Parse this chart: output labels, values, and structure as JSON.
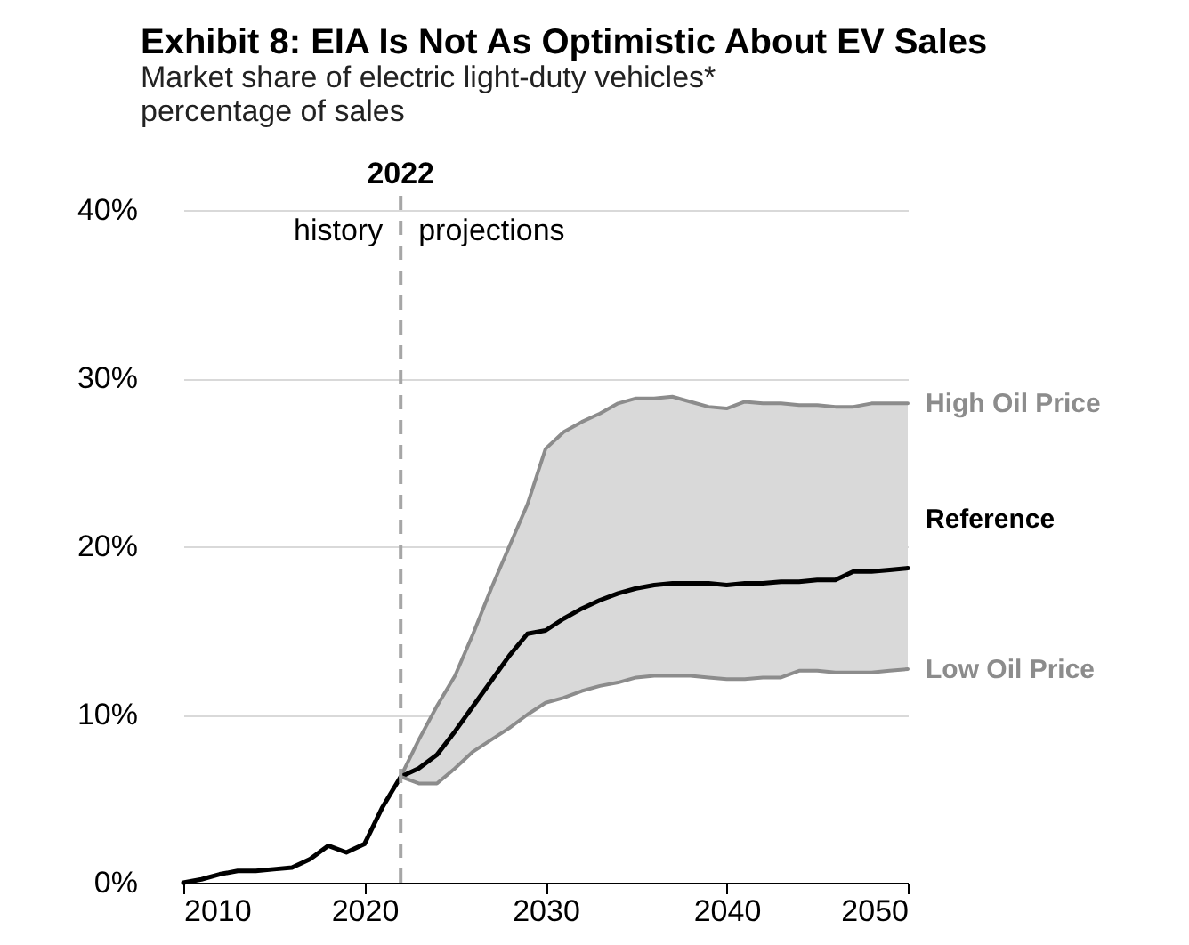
{
  "chart_data": {
    "type": "line",
    "title": "Exhibit 8: EIA Is Not As Optimistic About EV Sales",
    "subtitle": "Market share of electric light-duty vehicles*",
    "ylabel": "percentage of sales",
    "xlim": [
      2010,
      2050
    ],
    "xticks": [
      2010,
      2020,
      2030,
      2040,
      2050
    ],
    "ylim": [
      0,
      40
    ],
    "yticks": [
      {
        "value": 0,
        "label": "0%"
      },
      {
        "value": 10,
        "label": "10%"
      },
      {
        "value": 20,
        "label": "20%"
      },
      {
        "value": 30,
        "label": "30%"
      },
      {
        "value": 40,
        "label": "40%"
      }
    ],
    "grid": "y",
    "legend": false,
    "ref_lines": [
      {
        "axis": "x",
        "value": 2022,
        "label": "2022",
        "color": "#a6a6a6",
        "line_style": "dashed"
      }
    ],
    "annotations": [
      "history",
      "projections"
    ],
    "x": [
      2010,
      2011,
      2012,
      2013,
      2014,
      2015,
      2016,
      2017,
      2018,
      2019,
      2020,
      2021,
      2022,
      2023,
      2024,
      2025,
      2026,
      2027,
      2028,
      2029,
      2030,
      2031,
      2032,
      2033,
      2034,
      2035,
      2036,
      2037,
      2038,
      2039,
      2040,
      2041,
      2042,
      2043,
      2044,
      2045,
      2046,
      2047,
      2048,
      2049,
      2050
    ],
    "series": [
      {
        "name": "High Oil Price",
        "color": "#8c8c8c",
        "x": [
          2022,
          2023,
          2024,
          2025,
          2026,
          2027,
          2028,
          2029,
          2030,
          2031,
          2032,
          2033,
          2034,
          2035,
          2036,
          2037,
          2038,
          2039,
          2040,
          2041,
          2042,
          2043,
          2044,
          2045,
          2046,
          2047,
          2048,
          2049,
          2050
        ],
        "values": [
          6.3,
          8.5,
          10.5,
          12.3,
          14.8,
          17.5,
          20.0,
          22.5,
          25.8,
          26.8,
          27.4,
          27.9,
          28.5,
          28.8,
          28.8,
          28.9,
          28.6,
          28.3,
          28.2,
          28.6,
          28.5,
          28.5,
          28.4,
          28.4,
          28.3,
          28.3,
          28.5,
          28.5,
          28.5
        ]
      },
      {
        "name": "Reference",
        "color": "#000000",
        "values": [
          0,
          0.2,
          0.5,
          0.7,
          0.7,
          0.8,
          0.9,
          1.4,
          2.2,
          1.8,
          2.3,
          4.5,
          6.3,
          6.8,
          7.6,
          9.0,
          10.5,
          12.0,
          13.5,
          14.8,
          15.0,
          15.7,
          16.3,
          16.8,
          17.2,
          17.5,
          17.7,
          17.8,
          17.8,
          17.8,
          17.7,
          17.8,
          17.8,
          17.9,
          17.9,
          18.0,
          18.0,
          18.5,
          18.5,
          18.6,
          18.7
        ],
        "lower": [
          null,
          null,
          null,
          null,
          null,
          null,
          null,
          null,
          null,
          null,
          null,
          null,
          6.3,
          5.9,
          5.9,
          6.8,
          7.8,
          8.5,
          9.2,
          10.0,
          10.7,
          11.0,
          11.4,
          11.7,
          11.9,
          12.2,
          12.3,
          12.3,
          12.3,
          12.2,
          12.1,
          12.1,
          12.2,
          12.2,
          12.6,
          12.6,
          12.5,
          12.5,
          12.5,
          12.6,
          12.7
        ],
        "upper": [
          null,
          null,
          null,
          null,
          null,
          null,
          null,
          null,
          null,
          null,
          null,
          null,
          6.3,
          8.5,
          10.5,
          12.3,
          14.8,
          17.5,
          20.0,
          22.5,
          25.8,
          26.8,
          27.4,
          27.9,
          28.5,
          28.8,
          28.8,
          28.9,
          28.6,
          28.3,
          28.2,
          28.6,
          28.5,
          28.5,
          28.4,
          28.4,
          28.3,
          28.3,
          28.5,
          28.5,
          28.5
        ]
      },
      {
        "name": "Low Oil Price",
        "color": "#8c8c8c",
        "x": [
          2022,
          2023,
          2024,
          2025,
          2026,
          2027,
          2028,
          2029,
          2030,
          2031,
          2032,
          2033,
          2034,
          2035,
          2036,
          2037,
          2038,
          2039,
          2040,
          2041,
          2042,
          2043,
          2044,
          2045,
          2046,
          2047,
          2048,
          2049,
          2050
        ],
        "values": [
          6.3,
          5.9,
          5.9,
          6.8,
          7.8,
          8.5,
          9.2,
          10.0,
          10.7,
          11.0,
          11.4,
          11.7,
          11.9,
          12.2,
          12.3,
          12.3,
          12.3,
          12.2,
          12.1,
          12.1,
          12.2,
          12.2,
          12.6,
          12.6,
          12.5,
          12.5,
          12.5,
          12.6,
          12.7
        ]
      }
    ]
  }
}
